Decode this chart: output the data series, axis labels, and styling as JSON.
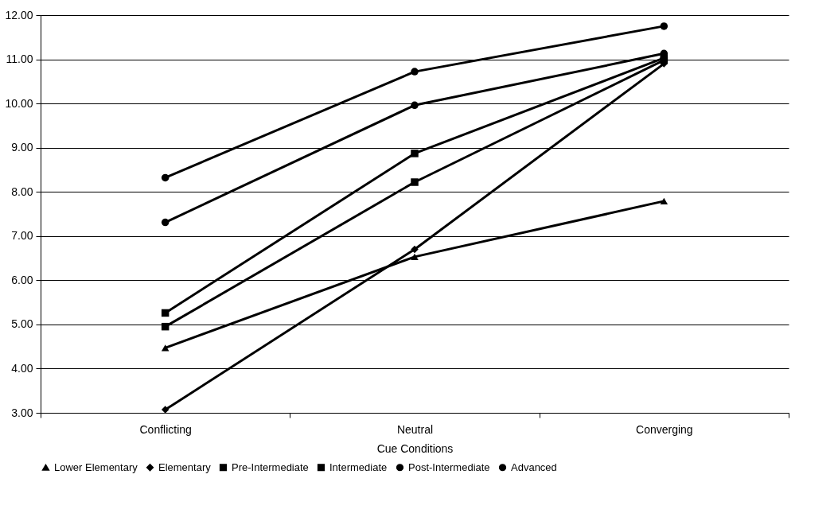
{
  "chart_data": {
    "type": "line",
    "xlabel": "Cue Conditions",
    "categories": [
      "Conflicting",
      "Neutral",
      "Converging"
    ],
    "series": [
      {
        "name": "Lower Elementary",
        "color": "#000000",
        "marker": "triangle",
        "values": [
          4.47,
          6.53,
          7.79
        ]
      },
      {
        "name": "Elementary",
        "color": "#000000",
        "marker": "diamond",
        "values": [
          3.07,
          6.7,
          10.9
        ]
      },
      {
        "name": "Pre-Intermediate",
        "color": "#000000",
        "marker": "square",
        "values": [
          4.95,
          8.22,
          10.98
        ]
      },
      {
        "name": "Intermediate",
        "color": "#000000",
        "marker": "square",
        "values": [
          5.26,
          8.87,
          11.03
        ]
      },
      {
        "name": "Post-Intermediate",
        "color": "#000000",
        "marker": "circle",
        "values": [
          7.31,
          9.96,
          11.13
        ]
      },
      {
        "name": "Advanced",
        "color": "#000000",
        "marker": "circle",
        "values": [
          8.32,
          10.72,
          11.75
        ]
      }
    ],
    "ylim": [
      3,
      12
    ],
    "yticks": [
      {
        "value": 3,
        "label": "3.00"
      },
      {
        "value": 4,
        "label": "4.00"
      },
      {
        "value": 5,
        "label": "5.00"
      },
      {
        "value": 6,
        "label": "6.00"
      },
      {
        "value": 7,
        "label": "7.00"
      },
      {
        "value": 8,
        "label": "8.00"
      },
      {
        "value": 9,
        "label": "9.00"
      },
      {
        "value": 10,
        "label": "10.00"
      },
      {
        "value": 11,
        "label": "11.00"
      },
      {
        "value": 12,
        "label": "12.00"
      }
    ],
    "grid": "y",
    "legend": "bottom",
    "line_style": "solid"
  }
}
